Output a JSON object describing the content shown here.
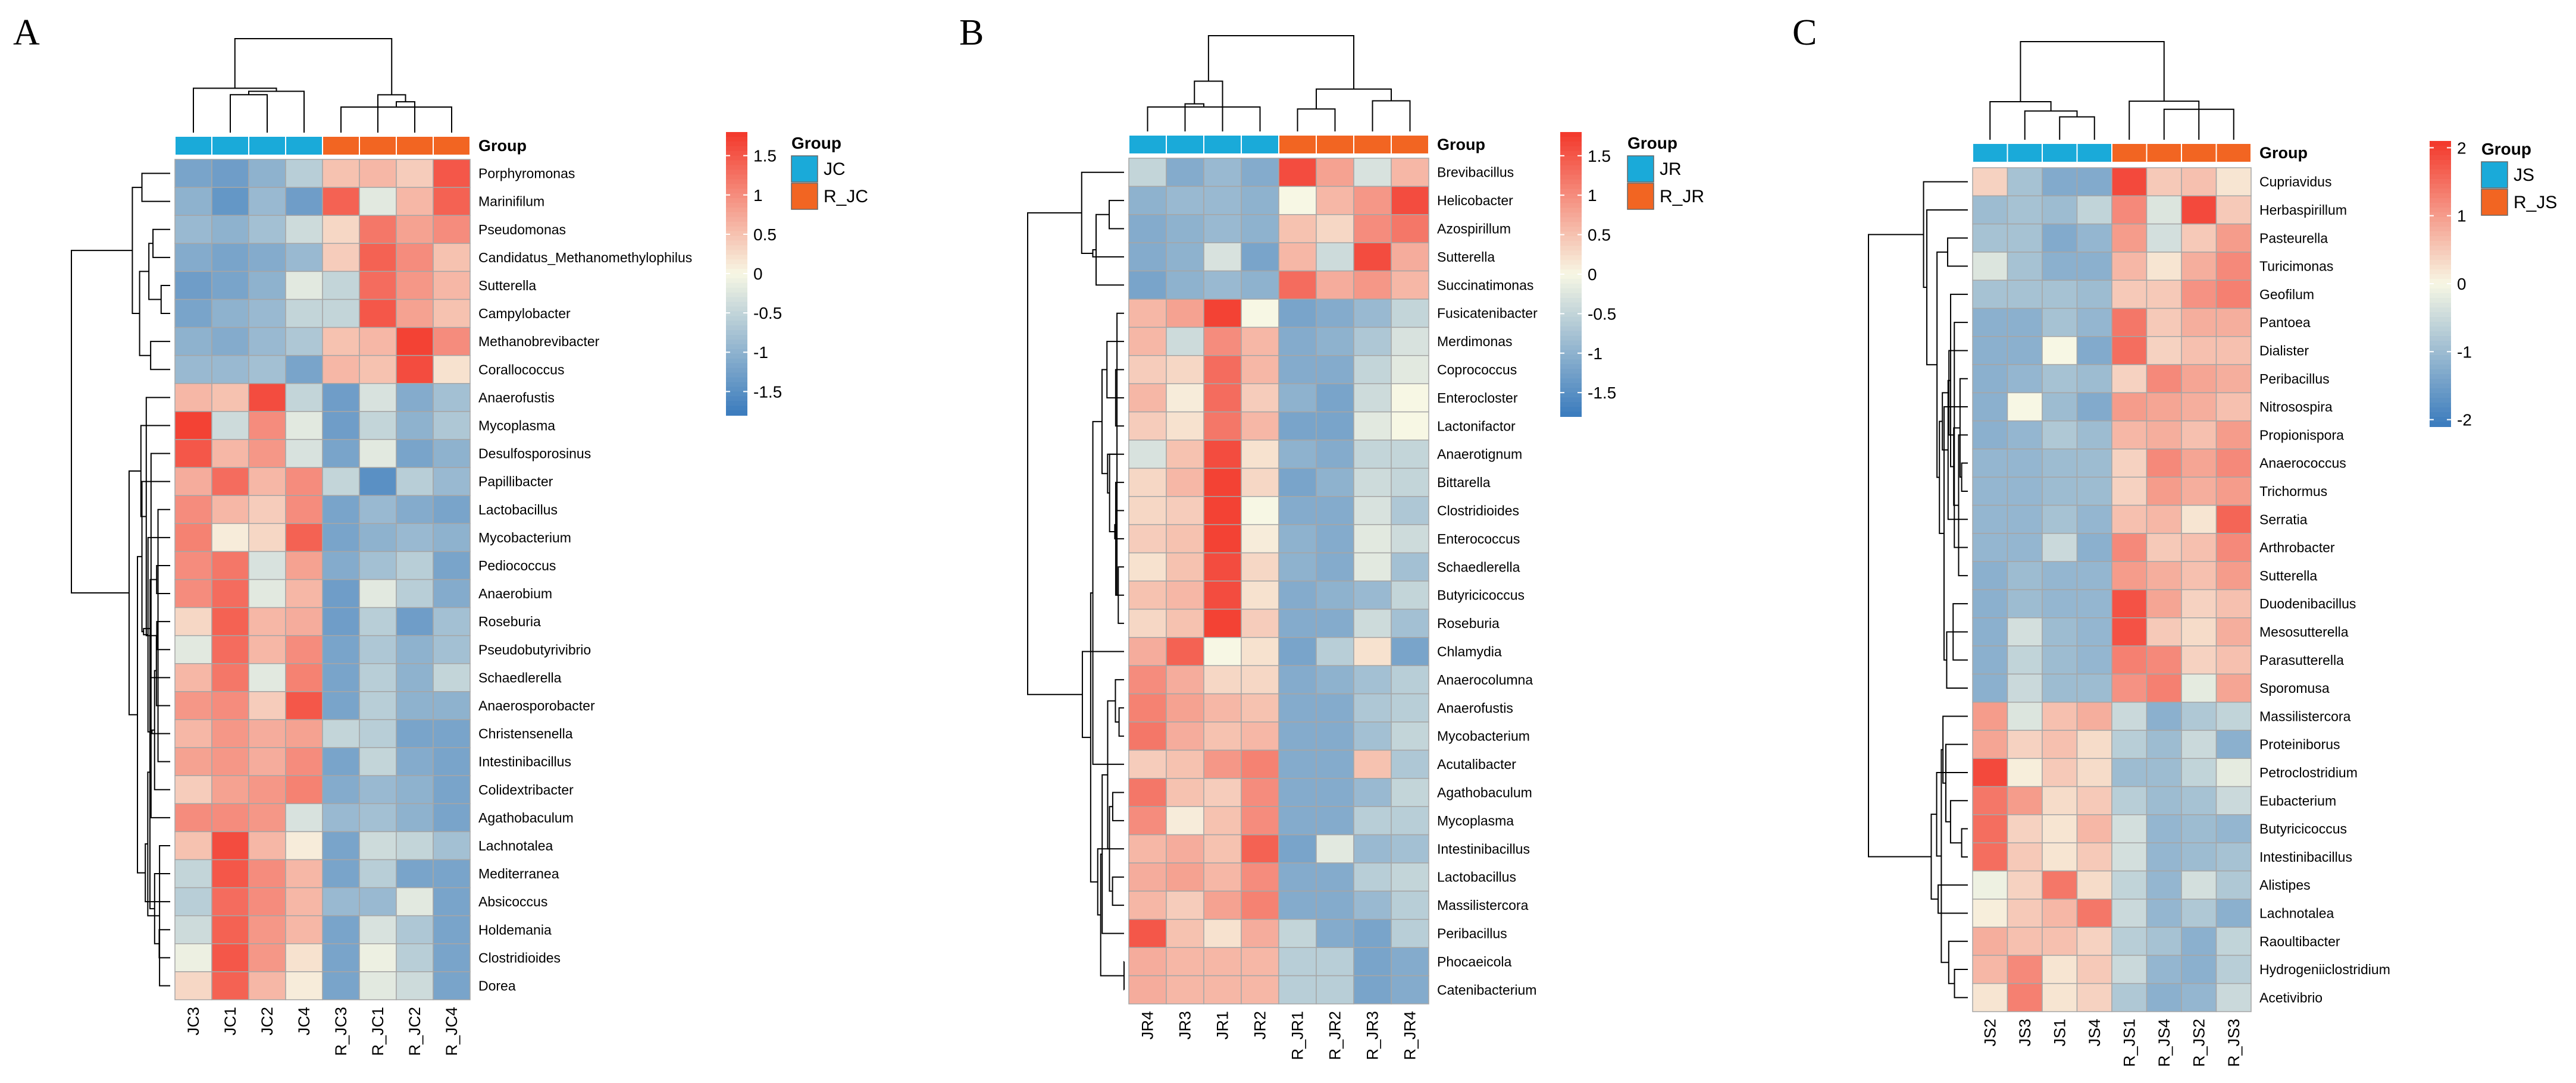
{
  "figure": {
    "colors": {
      "low": "#3a7bbd",
      "mid": "#f7f7e4",
      "high": "#f3372a",
      "cell_border": "#a6a6a6",
      "tree": "#000000"
    },
    "group_colors": {
      "control": "#1aaad9",
      "treated": "#f26522"
    }
  },
  "chart_data": [
    {
      "type": "heatmap",
      "panel": "A",
      "annotation_title": "Group",
      "legend": {
        "title": "Group",
        "entries": [
          "JC",
          "R_JC"
        ]
      },
      "colorbar": {
        "range": [
          -1.8,
          1.8
        ],
        "ticks": [
          -1.5,
          -1,
          -0.5,
          0,
          0.5,
          1,
          1.5
        ],
        "tick_labels": [
          "-1.5",
          "-1",
          "-0.5",
          "0",
          "0.5",
          "1",
          "1.5"
        ]
      },
      "columns": [
        "JC3",
        "JC1",
        "JC2",
        "JC4",
        "R_JC3",
        "R_JC1",
        "R_JC2",
        "R_JC4"
      ],
      "column_groups": [
        0,
        0,
        0,
        0,
        1,
        1,
        1,
        1
      ],
      "rows": [
        "Porphyromonas",
        "Marinifilum",
        "Pseudomonas",
        "Candidatus_Methanomethylophilus",
        "Sutterella",
        "Campylobacter",
        "Methanobrevibacter",
        "Corallococcus",
        "Anaerofustis",
        "Mycoplasma",
        "Desulfosporosinus",
        "Papillibacter",
        "Lactobacillus",
        "Mycobacterium",
        "Pediococcus",
        "Anaerobium",
        "Roseburia",
        "Pseudobutyrivibrio",
        "Schaedlerella",
        "Anaerosporobacter",
        "Christensenella",
        "Intestinibacillus",
        "Colidextribacter",
        "Agathobaculum",
        "Lachnotalea",
        "Mediterranea",
        "Absicoccus",
        "Holdemania",
        "Clostridioides",
        "Dorea"
      ],
      "values": [
        [
          -1.2,
          -1.3,
          -1.0,
          -0.6,
          0.5,
          0.6,
          0.4,
          1.5
        ],
        [
          -1.0,
          -1.4,
          -0.9,
          -1.3,
          1.4,
          -0.2,
          0.6,
          1.4
        ],
        [
          -0.9,
          -1.0,
          -0.8,
          -0.4,
          0.3,
          1.2,
          0.8,
          1.0
        ],
        [
          -1.1,
          -1.2,
          -1.1,
          -0.9,
          0.4,
          1.4,
          1.0,
          0.5
        ],
        [
          -1.3,
          -1.2,
          -1.0,
          -0.2,
          -0.5,
          1.3,
          0.9,
          0.6
        ],
        [
          -1.2,
          -1.0,
          -0.9,
          -0.5,
          -0.5,
          1.5,
          0.8,
          0.5
        ],
        [
          -1.0,
          -1.1,
          -0.9,
          -0.7,
          0.5,
          0.6,
          1.7,
          1.0
        ],
        [
          -0.9,
          -0.9,
          -0.8,
          -1.2,
          0.6,
          0.5,
          1.6,
          0.2
        ],
        [
          0.6,
          0.5,
          1.6,
          -0.5,
          -1.3,
          -0.3,
          -1.1,
          -0.8
        ],
        [
          1.7,
          -0.4,
          1.0,
          -0.2,
          -1.3,
          -0.5,
          -1.0,
          -0.7
        ],
        [
          1.5,
          0.6,
          0.9,
          -0.3,
          -1.2,
          -0.2,
          -1.2,
          -1.0
        ],
        [
          0.7,
          1.3,
          0.6,
          1.0,
          -0.5,
          -1.5,
          -0.6,
          -0.9
        ],
        [
          1.0,
          0.6,
          0.4,
          1.0,
          -1.2,
          -0.9,
          -1.1,
          -1.2
        ],
        [
          1.1,
          0.1,
          0.3,
          1.4,
          -1.2,
          -1.0,
          -0.9,
          -1.0
        ],
        [
          1.0,
          1.2,
          -0.3,
          0.8,
          -1.1,
          -0.8,
          -0.6,
          -1.2
        ],
        [
          1.0,
          1.3,
          -0.2,
          0.6,
          -1.3,
          -0.2,
          -0.6,
          -1.1
        ],
        [
          0.3,
          1.4,
          0.6,
          0.7,
          -1.3,
          -0.6,
          -1.3,
          -0.8
        ],
        [
          -0.2,
          1.3,
          0.6,
          1.0,
          -1.2,
          -0.7,
          -1.0,
          -0.8
        ],
        [
          0.6,
          1.2,
          -0.2,
          1.1,
          -1.2,
          -0.6,
          -1.0,
          -0.5
        ],
        [
          0.9,
          1.0,
          0.4,
          1.5,
          -1.2,
          -0.6,
          -1.0,
          -1.0
        ],
        [
          0.6,
          0.9,
          0.7,
          0.8,
          -0.5,
          -0.6,
          -1.2,
          -1.2
        ],
        [
          0.8,
          0.9,
          0.7,
          1.0,
          -1.2,
          -0.5,
          -1.1,
          -1.2
        ],
        [
          0.4,
          0.8,
          0.9,
          1.1,
          -1.1,
          -0.9,
          -1.0,
          -1.2
        ],
        [
          1.0,
          1.0,
          0.9,
          -0.3,
          -0.9,
          -0.8,
          -1.0,
          -1.2
        ],
        [
          0.5,
          1.6,
          0.6,
          0.1,
          -1.2,
          -0.4,
          -0.5,
          -0.8
        ],
        [
          -0.5,
          1.5,
          1.0,
          0.6,
          -1.2,
          -0.6,
          -1.2,
          -1.2
        ],
        [
          -0.6,
          1.3,
          1.0,
          0.6,
          -0.9,
          -0.9,
          -0.2,
          -1.2
        ],
        [
          -0.4,
          1.4,
          0.9,
          0.6,
          -1.2,
          -0.3,
          -0.7,
          -1.2
        ],
        [
          -0.1,
          1.5,
          0.9,
          0.2,
          -1.2,
          -0.1,
          -0.6,
          -1.2
        ],
        [
          0.3,
          1.4,
          0.6,
          0.1,
          -1.2,
          -0.2,
          -0.4,
          -1.2
        ]
      ]
    },
    {
      "type": "heatmap",
      "panel": "B",
      "annotation_title": "Group",
      "legend": {
        "title": "Group",
        "entries": [
          "JR",
          "R_JR"
        ]
      },
      "colorbar": {
        "range": [
          -1.8,
          1.8
        ],
        "ticks": [
          -1.5,
          -1,
          -0.5,
          0,
          0.5,
          1,
          1.5
        ],
        "tick_labels": [
          "-1.5",
          "-1",
          "-0.5",
          "0",
          "0.5",
          "1",
          "1.5"
        ]
      },
      "columns": [
        "JR4",
        "JR3",
        "JR1",
        "JR2",
        "R_JR1",
        "R_JR2",
        "R_JR3",
        "R_JR4"
      ],
      "column_groups": [
        0,
        0,
        0,
        0,
        1,
        1,
        1,
        1
      ],
      "rows": [
        "Brevibacillus",
        "Helicobacter",
        "Azospirillum",
        "Sutterella",
        "Succinatimonas",
        "Fusicatenibacter",
        "Merdimonas",
        "Coprococcus",
        "Enterocloster",
        "Lactonifactor",
        "Anaerotignum",
        "Bittarella",
        "Clostridioides",
        "Enterococcus",
        "Schaedlerella",
        "Butyricicoccus",
        "Roseburia",
        "Chlamydia",
        "Anaerocolumna",
        "Anaerofustis",
        "Mycobacterium",
        "Acutalibacter",
        "Agathobaculum",
        "Mycoplasma",
        "Intestinibacillus",
        "Lactobacillus",
        "Massilistercora",
        "Peribacillus",
        "Phocaeicola",
        "Catenibacterium"
      ],
      "values": [
        [
          -0.5,
          -1.1,
          -0.9,
          -1.1,
          1.6,
          0.8,
          -0.3,
          0.6
        ],
        [
          -1.0,
          -0.9,
          -0.9,
          -1.0,
          0.0,
          0.6,
          0.9,
          1.6
        ],
        [
          -1.1,
          -1.0,
          -0.9,
          -1.0,
          0.5,
          0.3,
          1.0,
          1.2
        ],
        [
          -1.1,
          -1.0,
          -0.3,
          -1.2,
          0.6,
          -0.4,
          1.6,
          0.7
        ],
        [
          -1.2,
          -1.0,
          -0.9,
          -1.0,
          1.3,
          0.7,
          0.9,
          0.6
        ],
        [
          0.6,
          0.8,
          1.7,
          0.0,
          -1.2,
          -1.1,
          -0.9,
          -0.5
        ],
        [
          0.6,
          -0.4,
          1.0,
          0.6,
          -1.1,
          -1.0,
          -0.7,
          -0.3
        ],
        [
          0.4,
          0.3,
          1.3,
          0.6,
          -1.1,
          -1.1,
          -0.5,
          -0.2
        ],
        [
          0.6,
          0.1,
          1.3,
          0.4,
          -1.0,
          -1.2,
          -0.4,
          0.0
        ],
        [
          0.4,
          0.2,
          1.2,
          0.6,
          -1.2,
          -1.2,
          -0.2,
          0.0
        ],
        [
          -0.3,
          0.5,
          1.6,
          0.2,
          -1.0,
          -1.1,
          -0.5,
          -0.5
        ],
        [
          0.3,
          0.6,
          1.7,
          0.3,
          -1.2,
          -1.0,
          -0.4,
          -0.5
        ],
        [
          0.3,
          0.4,
          1.7,
          0.0,
          -1.1,
          -1.1,
          -0.3,
          -0.7
        ],
        [
          0.4,
          0.5,
          1.7,
          0.1,
          -1.0,
          -1.1,
          -0.2,
          -0.4
        ],
        [
          0.2,
          0.5,
          1.6,
          0.3,
          -1.0,
          -1.1,
          -0.2,
          -0.8
        ],
        [
          0.5,
          0.6,
          1.6,
          0.2,
          -1.1,
          -1.0,
          -0.9,
          -0.5
        ],
        [
          0.3,
          0.5,
          1.7,
          0.4,
          -1.1,
          -1.1,
          -0.4,
          -0.8
        ],
        [
          0.7,
          1.4,
          0.0,
          0.2,
          -1.2,
          -0.6,
          0.2,
          -1.2
        ],
        [
          1.0,
          0.7,
          0.3,
          0.3,
          -1.1,
          -1.0,
          -0.8,
          -0.6
        ],
        [
          1.1,
          0.8,
          0.6,
          0.5,
          -1.1,
          -1.1,
          -0.7,
          -0.6
        ],
        [
          1.2,
          0.7,
          0.5,
          0.6,
          -1.1,
          -1.1,
          -0.8,
          -0.5
        ],
        [
          0.4,
          0.5,
          0.9,
          1.1,
          -1.1,
          -1.1,
          0.5,
          -0.7
        ],
        [
          1.2,
          0.5,
          0.4,
          1.0,
          -1.1,
          -1.1,
          -0.9,
          -0.5
        ],
        [
          1.0,
          0.1,
          0.5,
          1.0,
          -1.1,
          -1.1,
          -0.6,
          -0.6
        ],
        [
          0.6,
          0.7,
          0.5,
          1.4,
          -1.2,
          -0.2,
          -0.9,
          -0.8
        ],
        [
          0.7,
          0.8,
          0.6,
          1.0,
          -1.1,
          -1.1,
          -0.6,
          -0.5
        ],
        [
          0.6,
          0.4,
          0.8,
          1.1,
          -1.1,
          -1.1,
          -0.9,
          -0.6
        ],
        [
          1.5,
          0.5,
          0.2,
          0.7,
          -0.5,
          -1.1,
          -1.2,
          -0.6
        ],
        [
          0.7,
          0.6,
          0.6,
          0.6,
          -0.6,
          -0.6,
          -1.2,
          -1.1
        ],
        [
          0.7,
          0.6,
          0.6,
          0.6,
          -0.6,
          -0.6,
          -1.2,
          -1.1
        ]
      ]
    },
    {
      "type": "heatmap",
      "panel": "C",
      "annotation_title": "Group",
      "legend": {
        "title": "Group",
        "entries": [
          "JS",
          "R_JS"
        ]
      },
      "colorbar": {
        "range": [
          -2.1,
          2.1
        ],
        "ticks": [
          -2,
          -1,
          0,
          1,
          2
        ],
        "tick_labels": [
          "-2",
          "-1",
          "0",
          "1",
          "2"
        ]
      },
      "columns": [
        "JS2",
        "JS3",
        "JS1",
        "JS4",
        "R_JS1",
        "R_JS4",
        "R_JS2",
        "R_JS3"
      ],
      "column_groups": [
        0,
        0,
        0,
        0,
        1,
        1,
        1,
        1
      ],
      "rows": [
        "Cupriavidus",
        "Herbaspirillum",
        "Pasteurella",
        "Turicimonas",
        "Geofilum",
        "Pantoea",
        "Dialister",
        "Peribacillus",
        "Nitrosospira",
        "Propionispora",
        "Anaerococcus",
        "Trichormus",
        "Serratia",
        "Arthrobacter",
        "Sutterella",
        "Duodenibacillus",
        "Mesosutterella",
        "Parasutterella",
        "Sporomusa",
        "Massilistercora",
        "Proteiniborus",
        "Petroclostridium",
        "Eubacterium",
        "Butyricicoccus",
        "Intestinibacillus",
        "Alistipes",
        "Lachnotalea",
        "Raoultibacter",
        "Hydrogeniiclostridium",
        "Acetivibrio"
      ],
      "values": [
        [
          0.4,
          -0.9,
          -1.3,
          -1.3,
          1.9,
          0.5,
          0.6,
          0.2
        ],
        [
          -1.0,
          -0.9,
          -1.0,
          -0.6,
          1.2,
          -0.3,
          1.9,
          0.5
        ],
        [
          -0.9,
          -0.9,
          -1.3,
          -1.1,
          1.0,
          -0.4,
          0.5,
          1.0
        ],
        [
          -0.3,
          -0.9,
          -1.2,
          -1.2,
          0.7,
          0.2,
          0.8,
          1.2
        ],
        [
          -0.9,
          -0.9,
          -0.9,
          -1.0,
          0.5,
          0.5,
          1.1,
          1.3
        ],
        [
          -1.2,
          -1.2,
          -0.9,
          -1.1,
          1.4,
          0.5,
          0.8,
          0.8
        ],
        [
          -1.2,
          -1.2,
          0.0,
          -1.3,
          1.5,
          0.4,
          0.6,
          0.6
        ],
        [
          -1.2,
          -1.1,
          -0.9,
          -1.0,
          0.4,
          1.2,
          0.9,
          0.8
        ],
        [
          -1.2,
          0.0,
          -1.0,
          -1.3,
          1.0,
          0.9,
          0.8,
          0.6
        ],
        [
          -1.2,
          -1.1,
          -0.8,
          -1.0,
          0.7,
          0.8,
          0.6,
          1.0
        ],
        [
          -1.1,
          -1.1,
          -1.0,
          -1.0,
          0.4,
          1.2,
          0.9,
          1.2
        ],
        [
          -1.1,
          -1.1,
          -1.0,
          -1.0,
          0.4,
          1.0,
          0.8,
          1.0
        ],
        [
          -1.1,
          -1.1,
          -0.9,
          -1.1,
          0.6,
          0.7,
          0.2,
          1.6
        ],
        [
          -1.1,
          -1.1,
          -0.5,
          -1.2,
          1.2,
          0.5,
          0.6,
          1.2
        ],
        [
          -1.2,
          -1.0,
          -1.1,
          -1.1,
          1.0,
          0.8,
          0.6,
          1.0
        ],
        [
          -1.2,
          -1.0,
          -1.1,
          -1.1,
          1.8,
          0.9,
          0.4,
          0.6
        ],
        [
          -1.2,
          -0.4,
          -1.0,
          -1.1,
          1.8,
          0.5,
          0.3,
          0.8
        ],
        [
          -1.2,
          -0.6,
          -1.0,
          -1.1,
          1.3,
          1.2,
          0.4,
          0.6
        ],
        [
          -1.2,
          -0.5,
          -1.0,
          -1.0,
          1.1,
          1.3,
          -0.2,
          0.9
        ],
        [
          1.0,
          -0.3,
          0.6,
          0.8,
          -0.5,
          -1.2,
          -0.8,
          -0.6
        ],
        [
          0.9,
          0.4,
          0.6,
          0.3,
          -0.7,
          -1.0,
          -0.5,
          -1.2
        ],
        [
          1.9,
          0.1,
          0.5,
          0.3,
          -1.0,
          -1.0,
          -0.6,
          -0.2
        ],
        [
          1.4,
          1.0,
          0.3,
          0.5,
          -0.7,
          -1.0,
          -0.9,
          -0.5
        ],
        [
          1.5,
          0.4,
          0.2,
          0.7,
          -0.4,
          -1.1,
          -1.0,
          -1.1
        ],
        [
          1.5,
          0.5,
          0.2,
          0.5,
          -0.4,
          -1.1,
          -1.0,
          -0.9
        ],
        [
          -0.1,
          0.4,
          1.4,
          0.3,
          -0.6,
          -1.1,
          -0.4,
          -0.8
        ],
        [
          0.1,
          0.5,
          0.7,
          1.4,
          -0.5,
          -1.1,
          -0.8,
          -1.2
        ],
        [
          0.8,
          0.6,
          0.6,
          0.4,
          -0.7,
          -0.9,
          -1.2,
          -0.6
        ],
        [
          0.7,
          1.2,
          0.2,
          0.5,
          -0.5,
          -1.1,
          -1.2,
          -0.7
        ],
        [
          0.2,
          1.3,
          0.2,
          0.4,
          -0.8,
          -1.2,
          -1.1,
          -0.5
        ]
      ]
    }
  ]
}
